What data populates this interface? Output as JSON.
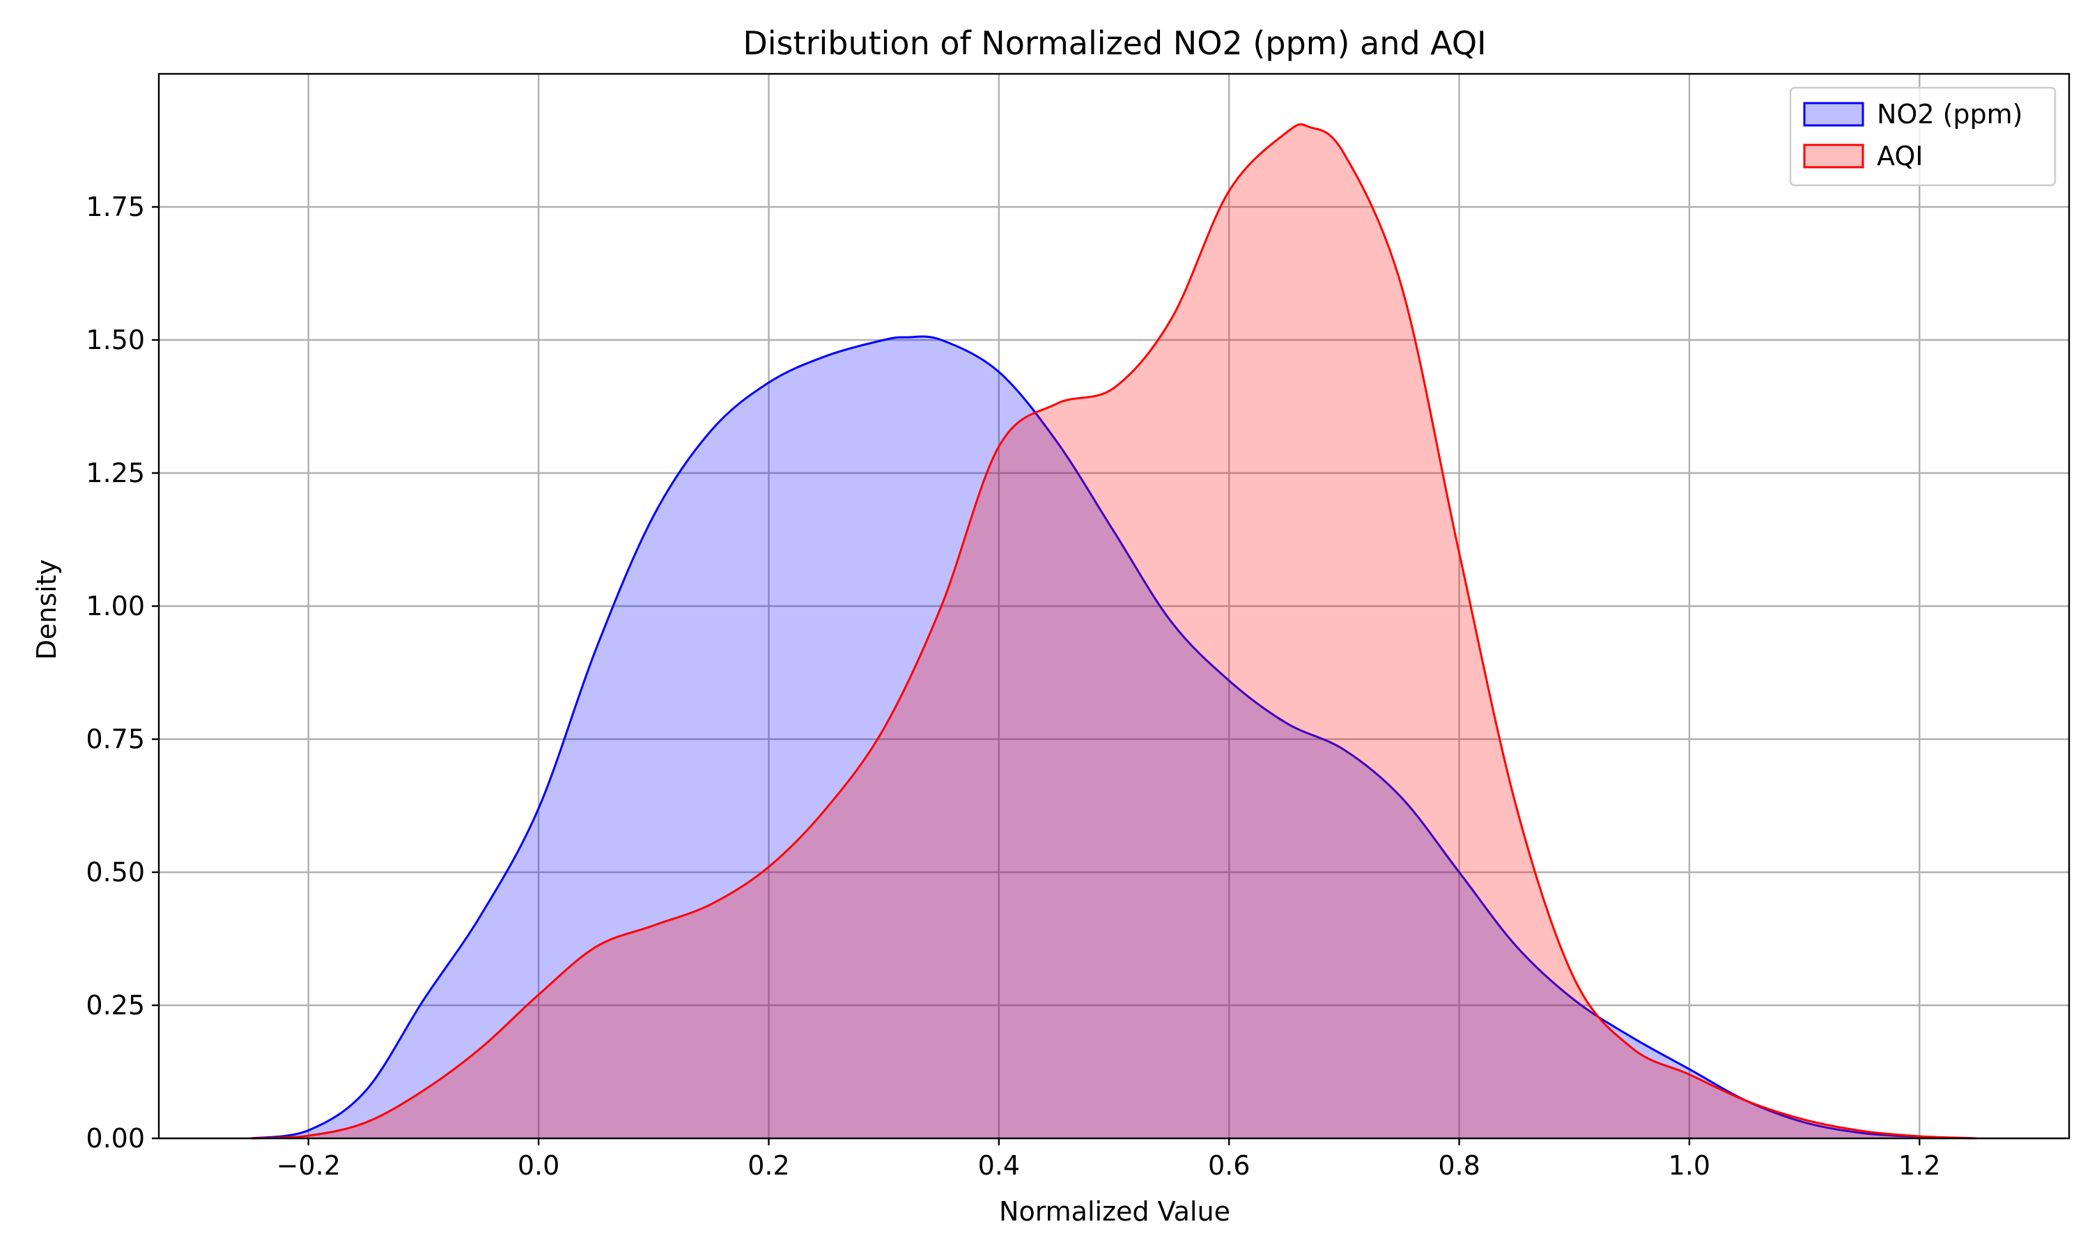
{
  "chart_data": {
    "type": "area",
    "title": "Distribution of Normalized NO2 (ppm) and AQI",
    "xlabel": "Normalized Value",
    "ylabel": "Density",
    "xlim": [
      -0.33,
      1.33
    ],
    "ylim": [
      0,
      2.0
    ],
    "x_ticks": [
      -0.2,
      0.0,
      0.2,
      0.4,
      0.6,
      0.8,
      1.0,
      1.2
    ],
    "x_tick_labels": [
      "−0.2",
      "0.0",
      "0.2",
      "0.4",
      "0.6",
      "0.8",
      "1.0",
      "1.2"
    ],
    "y_ticks": [
      0.0,
      0.25,
      0.5,
      0.75,
      1.0,
      1.25,
      1.5,
      1.75
    ],
    "y_tick_labels": [
      "0.00",
      "0.25",
      "0.50",
      "0.75",
      "1.00",
      "1.25",
      "1.50",
      "1.75"
    ],
    "grid": true,
    "legend_position": "top-right",
    "series": [
      {
        "name": "NO2 (ppm)",
        "line_color": "#0000ff",
        "fill_color": "#0000ff",
        "fill_opacity": 0.25,
        "x": [
          -0.25,
          -0.2,
          -0.15,
          -0.1,
          -0.05,
          0.0,
          0.05,
          0.1,
          0.15,
          0.2,
          0.25,
          0.3,
          0.32,
          0.35,
          0.4,
          0.45,
          0.5,
          0.55,
          0.6,
          0.65,
          0.7,
          0.75,
          0.8,
          0.85,
          0.9,
          0.95,
          1.0,
          1.05,
          1.1,
          1.15,
          1.2,
          1.25
        ],
        "y": [
          0.0,
          0.015,
          0.09,
          0.26,
          0.42,
          0.62,
          0.92,
          1.17,
          1.33,
          1.42,
          1.47,
          1.5,
          1.505,
          1.5,
          1.44,
          1.31,
          1.14,
          0.97,
          0.86,
          0.78,
          0.73,
          0.64,
          0.5,
          0.36,
          0.26,
          0.19,
          0.13,
          0.07,
          0.03,
          0.01,
          0.003,
          0.0
        ]
      },
      {
        "name": "AQI",
        "line_color": "#ff0000",
        "fill_color": "#ff0000",
        "fill_opacity": 0.25,
        "x": [
          -0.25,
          -0.2,
          -0.15,
          -0.1,
          -0.05,
          0.0,
          0.05,
          0.1,
          0.15,
          0.2,
          0.25,
          0.3,
          0.35,
          0.4,
          0.45,
          0.5,
          0.55,
          0.6,
          0.65,
          0.67,
          0.7,
          0.75,
          0.8,
          0.85,
          0.9,
          0.95,
          1.0,
          1.05,
          1.1,
          1.15,
          1.2,
          1.25
        ],
        "y": [
          0.0,
          0.005,
          0.03,
          0.09,
          0.17,
          0.27,
          0.36,
          0.4,
          0.44,
          0.51,
          0.62,
          0.77,
          1.0,
          1.3,
          1.38,
          1.41,
          1.54,
          1.78,
          1.89,
          1.9,
          1.85,
          1.6,
          1.1,
          0.62,
          0.3,
          0.17,
          0.12,
          0.07,
          0.035,
          0.014,
          0.004,
          0.0
        ]
      }
    ]
  }
}
